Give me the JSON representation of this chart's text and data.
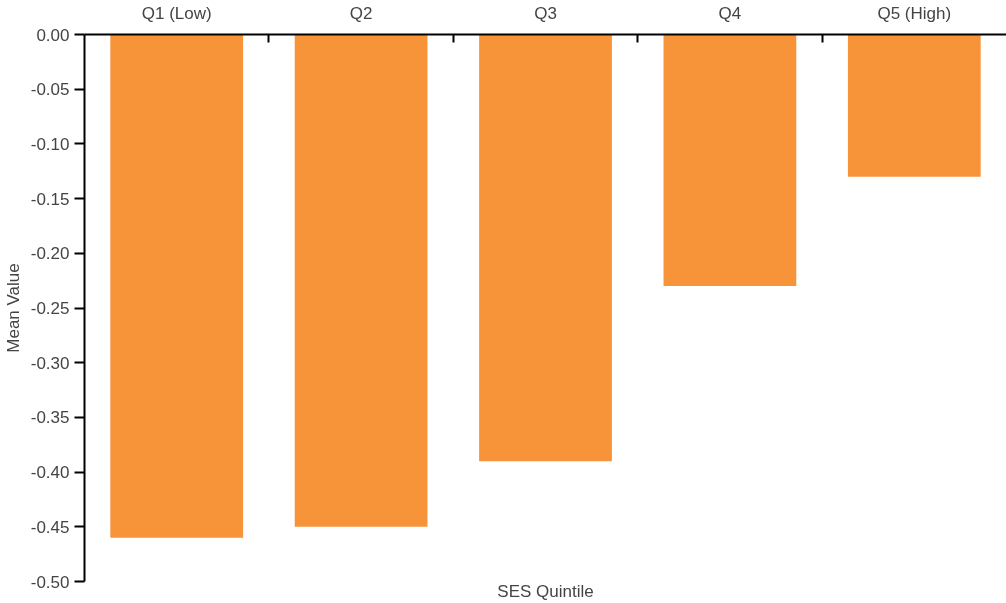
{
  "chart_data": {
    "type": "bar",
    "categories": [
      "Q1 (Low)",
      "Q2",
      "Q3",
      "Q4",
      "Q5 (High)"
    ],
    "values": [
      -0.46,
      -0.45,
      -0.39,
      -0.23,
      -0.13
    ],
    "color": "#f7943a",
    "xlabel": "SES Quintile",
    "ylabel": "Mean Value",
    "ylim": [
      -0.5,
      0
    ],
    "yticks": [
      {
        "value": 0,
        "label": "0.00"
      },
      {
        "value": -0.05,
        "label": "-0.05"
      },
      {
        "value": -0.1,
        "label": "-0.10"
      },
      {
        "value": -0.15,
        "label": "-0.15"
      },
      {
        "value": -0.2,
        "label": "-0.20"
      },
      {
        "value": -0.25,
        "label": "-0.25"
      },
      {
        "value": -0.3,
        "label": "-0.30"
      },
      {
        "value": -0.35,
        "label": "-0.35"
      },
      {
        "value": -0.4,
        "label": "-0.40"
      },
      {
        "value": -0.45,
        "label": "-0.45"
      },
      {
        "value": -0.5,
        "label": "-0.50"
      }
    ],
    "grid": false
  }
}
